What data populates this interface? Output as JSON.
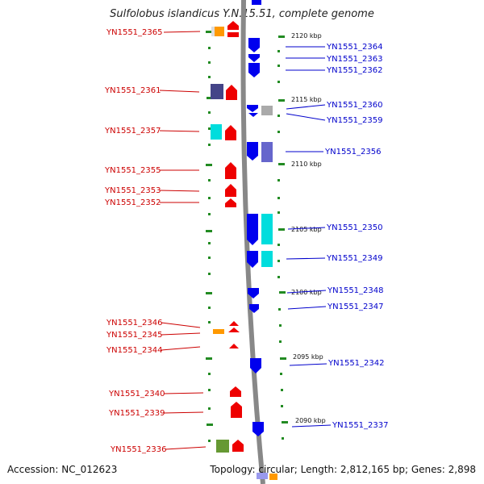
{
  "title": "Sulfolobus islandicus Y.N.15.51, complete genome",
  "footer": {
    "accession": "Accession: NC_012623",
    "summary": "Topology: circular; Length: 2,812,165 bp; Genes: 2,898"
  },
  "colors": {
    "left_label": "#cc0000",
    "right_label": "#0000cc",
    "forward_gene": "#ee0000",
    "reverse_gene": "#0000ee",
    "backbone": "#888888",
    "tick": "#228b22"
  },
  "scale_labels": [
    "2120 kbp",
    "2115 kbp",
    "2110 kbp",
    "2105 kbp",
    "2100 kbp",
    "2095 kbp",
    "2090 kbp"
  ],
  "left_genes": [
    "YN1551_2365",
    "YN1551_2361",
    "YN1551_2357",
    "YN1551_2355",
    "YN1551_2353",
    "YN1551_2352",
    "YN1551_2346",
    "YN1551_2345",
    "YN1551_2344",
    "YN1551_2340",
    "YN1551_2339",
    "YN1551_2336"
  ],
  "right_genes": [
    "YN1551_2364",
    "YN1551_2363",
    "YN1551_2362",
    "YN1551_2360",
    "YN1551_2359",
    "YN1551_2356",
    "YN1551_2350",
    "YN1551_2349",
    "YN1551_2348",
    "YN1551_2347",
    "YN1551_2342",
    "YN1551_2337"
  ]
}
